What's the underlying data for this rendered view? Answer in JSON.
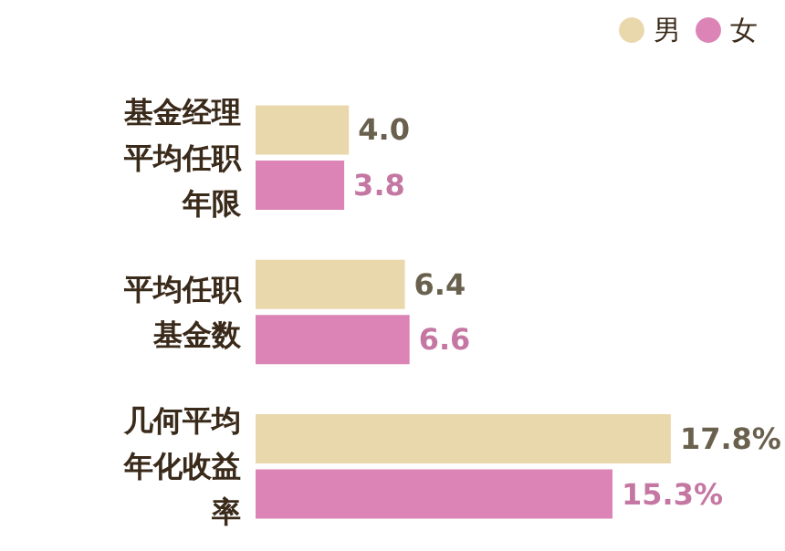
{
  "chart_data": {
    "type": "bar",
    "orientation": "horizontal",
    "categories": [
      "基金经理平均任职年限",
      "平均任职基金数",
      "几何平均年化收益率"
    ],
    "series": [
      {
        "name": "男",
        "color": "#ead8ad",
        "values": [
          4.0,
          6.4,
          17.8
        ],
        "value_labels": [
          "4.0",
          "6.4",
          "17.8%"
        ]
      },
      {
        "name": "女",
        "color": "#db84b5",
        "values": [
          3.8,
          6.6,
          15.3
        ],
        "value_labels": [
          "3.8",
          "6.6",
          "15.3%"
        ]
      }
    ],
    "legend": "top right"
  }
}
